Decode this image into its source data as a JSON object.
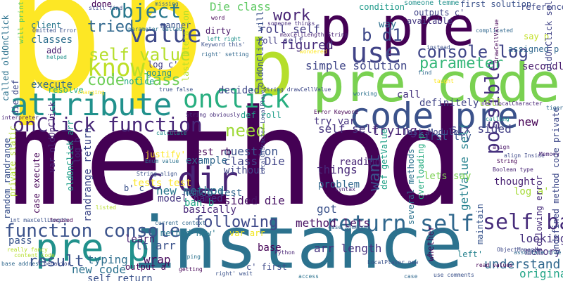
{
  "words": [
    {
      "text": "method",
      "color": "#440154"
    },
    {
      "text": "instance",
      "color": "#2c728e"
    },
    {
      "text": "p",
      "color": "#fde725"
    },
    {
      "text": "p",
      "color": "#fde725"
    },
    {
      "text": "pre code",
      "color": "#7ad151"
    },
    {
      "text": "p pre",
      "color": "#440154"
    },
    {
      "text": "code pre",
      "color": "#3b528b"
    },
    {
      "text": "b",
      "color": "#b5de2b"
    },
    {
      "text": "attribute",
      "color": "#21918c"
    },
    {
      "text": "pre p",
      "color": "#21918c"
    },
    {
      "text": "return self",
      "color": "#31688e"
    },
    {
      "text": "function console",
      "color": "#3b528b"
    },
    {
      "text": "onClick function",
      "color": "#482878"
    },
    {
      "text": "value",
      "color": "#3e4989"
    },
    {
      "text": "use",
      "color": "#414487"
    },
    {
      "text": "know",
      "color": "#bddf26"
    },
    {
      "text": "object",
      "color": "#2a788e"
    },
    {
      "text": "onClick",
      "color": "#28ae80"
    },
    {
      "text": "self ban",
      "color": "#472d7b"
    },
    {
      "text": "dir",
      "color": "#482475"
    },
    {
      "text": "console log",
      "color": "#404688"
    },
    {
      "text": "possible",
      "color": "#46327e"
    },
    {
      "text": "parameter",
      "color": "#35b779"
    },
    {
      "text": "code class",
      "color": "#6ece58"
    },
    {
      "text": "c",
      "color": "#472c7a"
    },
    {
      "text": "self value",
      "color": "#b5de2b"
    },
    {
      "text": "following",
      "color": "#3e4989"
    },
    {
      "text": "want",
      "color": "#3b528b"
    },
    {
      "text": "result",
      "color": "#3b528b"
    },
    {
      "text": "b d1",
      "color": "#3e4989"
    },
    {
      "text": "tried",
      "color": "#31688e"
    },
    {
      "text": "work",
      "color": "#482475"
    },
    {
      "text": "need",
      "color": "#a0da39"
    },
    {
      "text": "new method",
      "color": "#2a788e"
    },
    {
      "text": "ban b",
      "color": "#20a486"
    },
    {
      "text": "lt arr",
      "color": "#3b528b"
    },
    {
      "text": "figured",
      "color": "#472d7b"
    },
    {
      "text": "roll self",
      "color": "#433e85"
    },
    {
      "text": "simple solution",
      "color": "#404688"
    },
    {
      "text": "understand",
      "color": "#31688e"
    },
    {
      "text": "class Die",
      "color": "#414487"
    },
    {
      "text": "sided die",
      "color": "#471164"
    },
    {
      "text": "question",
      "color": "#3b528b"
    },
    {
      "text": "Die class",
      "color": "#5ec962"
    },
    {
      "text": "self self",
      "color": "#46337f"
    },
    {
      "text": "trying",
      "color": "#482475"
    },
    {
      "text": "six sided",
      "color": "#423f85"
    },
    {
      "text": "getValue self",
      "color": "#26828e"
    },
    {
      "text": "randrange return",
      "color": "#3e4989"
    },
    {
      "text": "things",
      "color": "#482878"
    },
    {
      "text": "reading",
      "color": "#482475"
    },
    {
      "text": "got",
      "color": "#3b528b"
    },
    {
      "text": "pass",
      "color": "#39558c"
    },
    {
      "text": "typing",
      "color": "#2e6f8e"
    },
    {
      "text": "wrap",
      "color": "#46085c"
    },
    {
      "text": "base",
      "color": "#440154"
    },
    {
      "text": "looking",
      "color": "#46327e"
    },
    {
      "text": "memory",
      "color": "#472d7b"
    },
    {
      "text": "original",
      "color": "#20a486"
    },
    {
      "text": "classes",
      "color": "#2e6f8e"
    },
    {
      "text": "execute",
      "color": "#31688e"
    },
    {
      "text": "new code",
      "color": "#2c728e"
    },
    {
      "text": "self return",
      "color": "#3b528b"
    },
    {
      "text": "named test",
      "color": "#32658e"
    },
    {
      "text": "basically",
      "color": "#482878"
    },
    {
      "text": "decided",
      "color": "#3e4989"
    },
    {
      "text": "example",
      "color": "#31688e"
    },
    {
      "text": "model named",
      "color": "#453581"
    },
    {
      "text": "without",
      "color": "#404688"
    },
    {
      "text": "arr length",
      "color": "#46327e"
    },
    {
      "text": "method lets",
      "color": "#471063"
    },
    {
      "text": "log c'",
      "color": "#433e85"
    },
    {
      "text": "call",
      "color": "#46327e"
    },
    {
      "text": "new",
      "color": "#440154"
    },
    {
      "text": "add",
      "color": "#481f70"
    },
    {
      "text": "going",
      "color": "#21918c"
    },
    {
      "text": "notice",
      "color": "#22a884"
    },
    {
      "text": "resolve",
      "color": "#29af7f"
    },
    {
      "text": "learn",
      "color": "#481f70"
    },
    {
      "text": "try var",
      "color": "#46337f"
    },
    {
      "text": "first try",
      "color": "#39568c"
    },
    {
      "text": "tests test",
      "color": "#fde725"
    },
    {
      "text": "test rb",
      "color": "#440154"
    },
    {
      "text": "definitely",
      "color": "#414487"
    },
    {
      "text": "problem",
      "color": "#31688e"
    },
    {
      "text": "thought",
      "color": "#482173"
    },
    {
      "text": "secondly",
      "color": "#481b6d"
    },
    {
      "text": "lets say",
      "color": "#7ad151"
    },
    {
      "text": "available",
      "color": "#453781"
    },
    {
      "text": "way",
      "color": "#2d708e"
    },
    {
      "text": "condition",
      "color": "#1f9a8a"
    },
    {
      "text": "first solution",
      "color": "#3b528b"
    },
    {
      "text": "reference",
      "color": "#3e4989"
    },
    {
      "text": "someone temme",
      "color": "#21918c"
    },
    {
      "text": "done",
      "color": "#440154"
    },
    {
      "text": "manner",
      "color": "#3b528b"
    },
    {
      "text": "dirty",
      "color": "#481668"
    },
    {
      "text": "client",
      "color": "#2a788e"
    },
    {
      "text": "log a'",
      "color": "#a5db36"
    },
    {
      "text": "several methods",
      "color": "#2c728e"
    },
    {
      "text": "oldOnClick arr",
      "color": "#1f9e89"
    },
    {
      "text": "random randrange",
      "color": "#3b528b"
    },
    {
      "text": "private static",
      "color": "#b2dd2d"
    },
    {
      "text": "called oldOnClick",
      "color": "#2c728e"
    },
    {
      "text": "die def",
      "color": "#3e4989"
    },
    {
      "text": "case execute",
      "color": "#440154"
    },
    {
      "text": "var oldOnClick",
      "color": "#482475"
    },
    {
      "text": "justify'",
      "color": "#fde725"
    },
    {
      "text": "method new'",
      "color": "#2a788e"
    },
    {
      "text": "var arr",
      "color": "#f0e51c"
    },
    {
      "text": "def roll",
      "color": "#1f9e89"
    },
    {
      "text": "output a'",
      "color": "#440154"
    },
    {
      "text": "c' first",
      "color": "#3e4989"
    },
    {
      "text": "left'",
      "color": "#26828e"
    },
    {
      "text": "whether",
      "color": "#440154"
    },
    {
      "text": "b' c",
      "color": "#3b528b"
    },
    {
      "text": "log b",
      "color": "#482475"
    },
    {
      "text": "overloading p",
      "color": "#27ad81"
    },
    {
      "text": "def getValue",
      "color": "#1fa187"
    },
    {
      "text": "outputs c'",
      "color": "#414487"
    },
    {
      "text": "assigned p",
      "color": "#31688e"
    },
    {
      "text": "say p",
      "color": "#c2df23"
    },
    {
      "text": "maintain",
      "color": "#39558c"
    },
    {
      "text": "Test Module",
      "color": "#3e4989"
    },
    {
      "text": "tell",
      "color": "#9fda3a"
    },
    {
      "text": "roll self",
      "color": "#433e85"
    },
    {
      "text": "last iteration",
      "color": "#b5de2b"
    },
    {
      "text": "oldOnClick will",
      "color": "#3b528b"
    },
    {
      "text": "oldOnClick self",
      "color": "#414487"
    },
    {
      "text": "undefined method code private",
      "color": "#3e4989"
    },
    {
      "text": "following error",
      "color": "#472d7b"
    },
    {
      "text": "align",
      "color": "#481467"
    },
    {
      "text": "String",
      "color": "#440154"
    },
    {
      "text": "LocalPlayer new",
      "color": "#3b528b"
    },
    {
      "text": "current context",
      "color": "#31688e"
    },
    {
      "text": "Boolean type",
      "color": "#482475"
    },
    {
      "text": "Enum value",
      "color": "#2c728e"
    },
    {
      "text": "ObjectManager",
      "color": "#3e4989"
    },
    {
      "text": "Error Keyword",
      "color": "#440154"
    },
    {
      "text": "will print",
      "color": "#5ec962"
    },
    {
      "text": "Keyword this'",
      "color": "#3b528b"
    },
    {
      "text": "right' setting",
      "color": "#31688e"
    },
    {
      "text": "left right",
      "color": "#21918c"
    },
    {
      "text": "word",
      "color": "#440154"
    },
    {
      "text": "maxCellLength String",
      "color": "#482475"
    },
    {
      "text": "String drawCellValue",
      "color": "#3e4989"
    },
    {
      "text": "String obviously",
      "color": "#472d7b"
    },
    {
      "text": "true false",
      "color": "#3b528b"
    },
    {
      "text": "complicated",
      "color": "#31688e"
    },
    {
      "text": "wondered",
      "color": "#fde725"
    },
    {
      "text": "working",
      "color": "#2c728e"
    },
    {
      "text": "calling",
      "color": "#21918c"
    },
    {
      "text": "read values",
      "color": "#440154"
    },
    {
      "text": "use comments",
      "color": "#3b528b"
    },
    {
      "text": "case someone",
      "color": "#31688e"
    },
    {
      "text": "Python",
      "color": "#482475"
    },
    {
      "text": "behavior",
      "color": "#3e4989"
    },
    {
      "text": "really fancy",
      "color": "#b5de2b"
    },
    {
      "text": "int maxCellLength",
      "color": "#3b528b"
    },
    {
      "text": "focused",
      "color": "#440154"
    },
    {
      "text": "base address'",
      "color": "#31688e"
    },
    {
      "text": "interpreter",
      "color": "#482475"
    },
    {
      "text": "still find",
      "color": "#3e4989"
    },
    {
      "text": "find",
      "color": "#31688e"
    },
    {
      "text": "helped",
      "color": "#21918c"
    },
    {
      "text": "getting",
      "color": "#440154"
    },
    {
      "text": "String align",
      "color": "#3b528b"
    },
    {
      "text": "syntax",
      "color": "#482475"
    },
    {
      "text": "associate true",
      "color": "#31688e"
    },
    {
      "text": "align Inside",
      "color": "#3e4989"
    },
    {
      "text": "someone thinks",
      "color": "#472d7b"
    },
    {
      "text": "parameter called",
      "color": "#2c728e"
    },
    {
      "text": "private",
      "color": "#440154"
    },
    {
      "text": "instead",
      "color": "#3b528b"
    },
    {
      "text": "listed",
      "color": "#b5de2b"
    },
    {
      "text": "taught",
      "color": "#fde725"
    },
    {
      "text": "missing",
      "color": "#31688e"
    },
    {
      "text": "new LocalCharacter",
      "color": "#482475"
    },
    {
      "text": "LocalCharacter LocalPlayer",
      "color": "#3e4989"
    },
    {
      "text": "drawCellValue",
      "color": "#440154"
    },
    {
      "text": "Omitted Error",
      "color": "#3b528b"
    },
    {
      "text": "access",
      "color": "#2c728e"
    },
    {
      "text": "case",
      "color": "#31688e"
    },
    {
      "text": "Memory",
      "color": "#482475"
    },
    {
      "text": "right' wait",
      "color": "#3b528b"
    },
    {
      "text": "content code",
      "color": "#b5de2b"
    },
    {
      "text": "changing",
      "color": "#fde725"
    },
    {
      "text": "calculate",
      "color": "#21918c"
    },
    {
      "text": "tigers",
      "color": "#31688e"
    },
    {
      "text": "typing",
      "color": "#2c728e"
    }
  ]
}
